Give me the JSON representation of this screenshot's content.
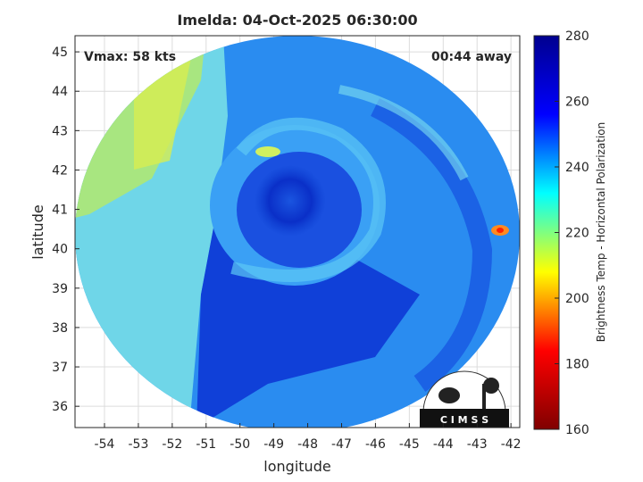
{
  "chart_data": {
    "type": "image",
    "title": "Imelda: 04-Oct-2025 06:30:00",
    "annotations": [
      "Vmax: 58 kts",
      "00:44 away"
    ],
    "x_label": "longitude",
    "y_label": "latitude",
    "xlim": [
      -54.87,
      -41.74
    ],
    "xticks": [
      -54,
      -53,
      -52,
      -51,
      -50,
      -49,
      -48,
      -47,
      -46,
      -45,
      -44,
      -43,
      -42
    ],
    "ylim": [
      35.46,
      45.41
    ],
    "yticks": [
      36,
      37,
      38,
      39,
      40,
      41,
      42,
      43,
      44,
      45
    ],
    "grid": true,
    "colorbar": {
      "label": "Brightness Temp - Horizontal Polarization",
      "lim": [
        160,
        280
      ],
      "ticks": [
        160,
        180,
        200,
        220,
        240,
        260,
        280
      ],
      "colors": [
        "#800000",
        "#ff0000",
        "#ffff00",
        "#00ffff",
        "#0000ff",
        "#00008f"
      ]
    },
    "logo": "C I M S S"
  }
}
